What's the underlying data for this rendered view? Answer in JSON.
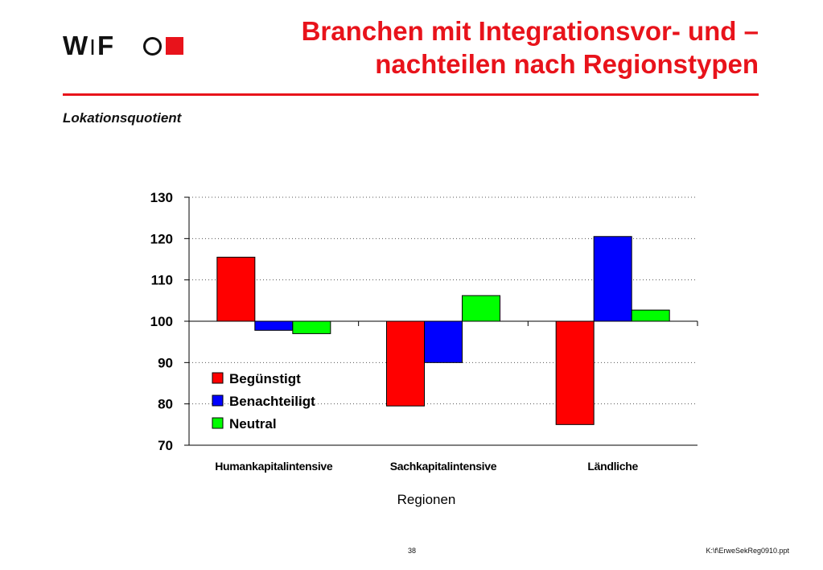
{
  "header": {
    "logo_text_w": "W",
    "logo_text_bar": "I",
    "logo_text_f": "F",
    "title_line1": "Branchen mit Integrationsvor- und –",
    "title_line2": "nachteilen nach Regionstypen",
    "accent_color": "#e8131b"
  },
  "subtitle": "Lokationsquotient",
  "chart_data": {
    "type": "bar",
    "title": "",
    "xlabel": "Regionen",
    "ylabel": "",
    "baseline": 100,
    "ylim": [
      70,
      130
    ],
    "yticks": [
      70,
      80,
      90,
      100,
      110,
      120,
      130
    ],
    "grid": true,
    "legend_position": "lower-left-inside",
    "categories": [
      "Humankapitalintensive",
      "Sachkapitalintensive",
      "Ländliche"
    ],
    "series": [
      {
        "name": "Begünstigt",
        "color": "#ff0000",
        "values": [
          115.5,
          79.5,
          75.0
        ]
      },
      {
        "name": "Benachteiligt",
        "color": "#0000ff",
        "values": [
          97.8,
          90.0,
          120.5
        ]
      },
      {
        "name": "Neutral",
        "color": "#00ff00",
        "values": [
          97.0,
          106.2,
          102.7
        ]
      }
    ]
  },
  "footer": {
    "page_number": "38",
    "file_name": "K:\\f\\ErweSekReg0910.ppt"
  }
}
